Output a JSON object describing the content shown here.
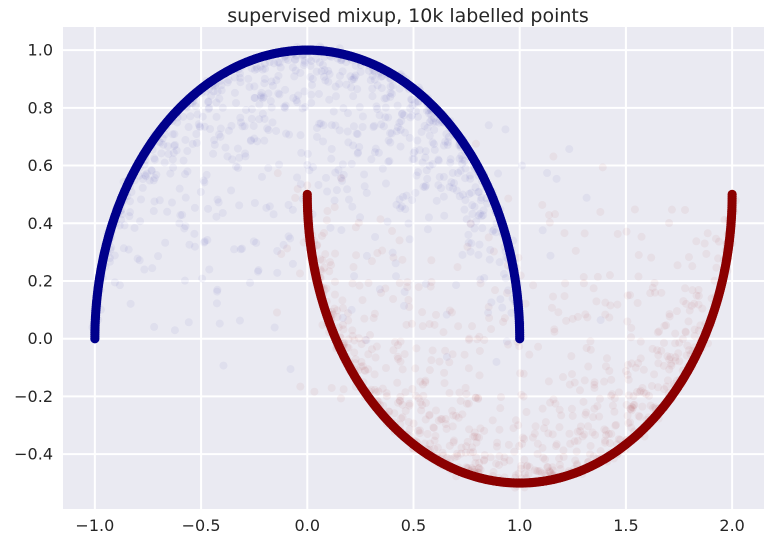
{
  "chart_data": {
    "type": "scatter",
    "title": "supervised mixup, 10k labelled points",
    "xlabel": "",
    "ylabel": "",
    "xlim": [
      -1.15,
      2.15
    ],
    "ylim": [
      -0.59,
      1.08
    ],
    "grid": true,
    "legend": "none",
    "x_ticks": [
      -1.0,
      -0.5,
      0.0,
      0.5,
      1.0,
      1.5,
      2.0
    ],
    "x_tick_labels": [
      "−1.0",
      "−0.5",
      "0.0",
      "0.5",
      "1.0",
      "1.5",
      "2.0"
    ],
    "y_ticks": [
      -0.4,
      -0.2,
      0.0,
      0.2,
      0.4,
      0.6,
      0.8,
      1.0
    ],
    "y_tick_labels": [
      "−0.4",
      "−0.2",
      "0.0",
      "0.2",
      "0.4",
      "0.6",
      "0.8",
      "1.0"
    ],
    "series": [
      {
        "color": "#00008b",
        "curve": "upper half-circle x=cos(t), y=sin(t), t in [0, pi]",
        "points": [
          [
            -1.0,
            0.0
          ],
          [
            -0.97,
            0.26
          ],
          [
            -0.87,
            0.5
          ],
          [
            -0.71,
            0.71
          ],
          [
            -0.5,
            0.87
          ],
          [
            -0.26,
            0.97
          ],
          [
            0.0,
            1.0
          ],
          [
            0.26,
            0.97
          ],
          [
            0.5,
            0.87
          ],
          [
            0.71,
            0.71
          ],
          [
            0.87,
            0.5
          ],
          [
            0.97,
            0.26
          ],
          [
            1.0,
            0.0
          ]
        ]
      },
      {
        "color": "#8b0000",
        "curve": "lower half-circle x=1-cos(t), y=0.5-sin(t), t in [0, pi]",
        "points": [
          [
            0.0,
            0.5
          ],
          [
            0.03,
            0.24
          ],
          [
            0.13,
            0.0
          ],
          [
            0.29,
            -0.21
          ],
          [
            0.5,
            -0.37
          ],
          [
            0.74,
            -0.47
          ],
          [
            1.0,
            -0.5
          ],
          [
            1.26,
            -0.47
          ],
          [
            1.5,
            -0.37
          ],
          [
            1.71,
            -0.21
          ],
          [
            1.87,
            0.0
          ],
          [
            1.97,
            0.24
          ],
          [
            2.0,
            0.5
          ]
        ]
      }
    ],
    "mixup_colors": {
      "blue": "#3a3aa8",
      "red": "#a83a3a"
    }
  },
  "style": {
    "background": "#eaeaf2",
    "grid": "#ffffff",
    "text": "#262626"
  }
}
